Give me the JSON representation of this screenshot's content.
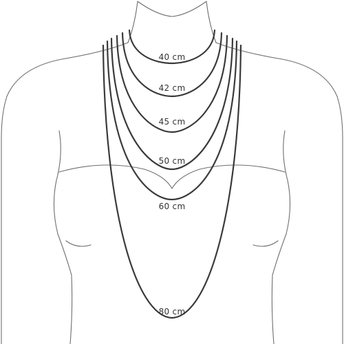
{
  "lengths": [
    {
      "label": "40 cm"
    },
    {
      "label": "42 cm"
    },
    {
      "label": "45 cm"
    },
    {
      "label": "50 cm"
    },
    {
      "label": "60 cm"
    },
    {
      "label": "80 cm"
    }
  ],
  "colors": {
    "background": "#ffffff",
    "body_outline": "#6e6e6e",
    "chain": "#3a3a3a",
    "label_text": "#333333"
  }
}
